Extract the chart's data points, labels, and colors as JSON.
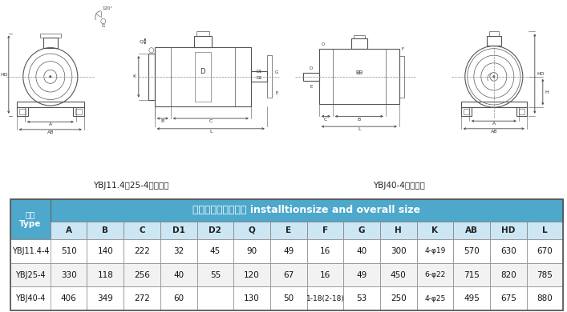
{
  "title_text": "安装尺寸及外形尺寸 installtionsize and overall size",
  "header_row": [
    "型号\nType",
    "A",
    "B",
    "C",
    "D1",
    "D2",
    "Q",
    "E",
    "F",
    "G",
    "H",
    "K",
    "AB",
    "HD",
    "L"
  ],
  "data_rows": [
    [
      "YBJ11.4-4",
      "510",
      "140",
      "222",
      "32",
      "45",
      "90",
      "49",
      "16",
      "40",
      "300",
      "4-φ19",
      "570",
      "630",
      "670"
    ],
    [
      "YBJ25-4",
      "330",
      "118",
      "256",
      "40",
      "55",
      "120",
      "67",
      "16",
      "49",
      "450",
      "6-φ22",
      "715",
      "820",
      "785"
    ],
    [
      "YBJ40-4",
      "406",
      "349",
      "272",
      "60",
      "",
      "130",
      "50",
      "1-18(2-18)",
      "53",
      "250",
      "4-φ25",
      "495",
      "675",
      "880"
    ]
  ],
  "label_left": "YBJ11.4、25-4安装方式",
  "label_right": "YBJ40-4安装方式",
  "bg_color": "#ffffff",
  "header_blue": "#4da8cc",
  "col_header_bg": "#cce6f4",
  "border_color": "#999999",
  "draw_color": "#555555",
  "draw_lw": 0.8
}
